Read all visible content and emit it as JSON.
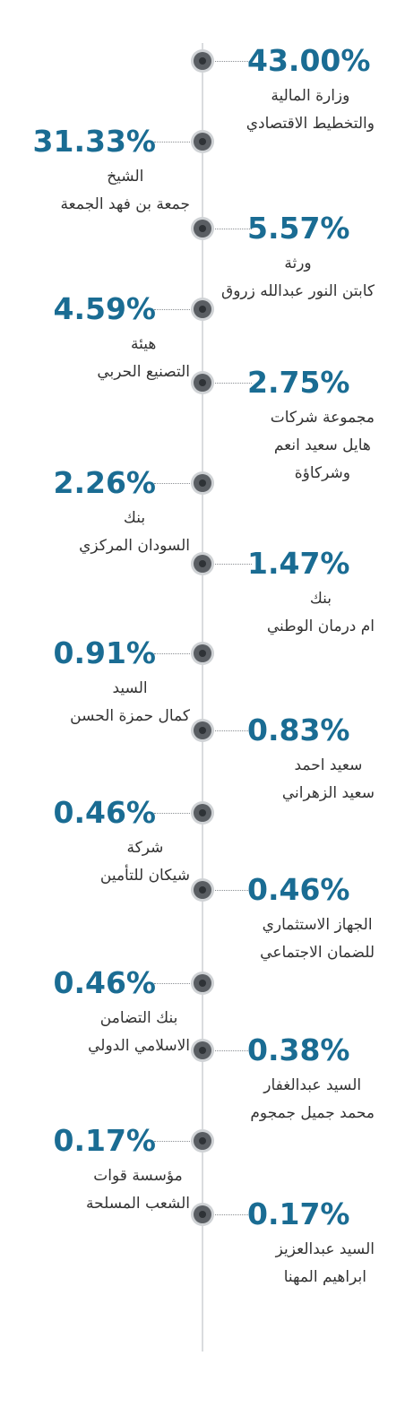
{
  "chart_data": {
    "type": "table",
    "title": "",
    "x": [
      "43.00%",
      "31.33%",
      "5.57%",
      "4.59%",
      "2.75%",
      "2.26%",
      "1.47%",
      "0.91%",
      "0.83%",
      "0.46%",
      "0.46%",
      "0.46%",
      "0.38%",
      "0.17%",
      "0.17%"
    ],
    "items": [
      {
        "pct": "43.00%",
        "value": 43.0,
        "side": "right",
        "lines": [
          "وزارة المالية",
          "والتخطيط الاقتصادي"
        ]
      },
      {
        "pct": "31.33%",
        "value": 31.33,
        "side": "left",
        "lines": [
          "الشيخ",
          "جمعة بن فهد الجمعة"
        ]
      },
      {
        "pct": "5.57%",
        "value": 5.57,
        "side": "right",
        "lines": [
          "ورثة",
          "كابتن النور عبدالله زروق"
        ]
      },
      {
        "pct": "4.59%",
        "value": 4.59,
        "side": "left",
        "lines": [
          "هيئة",
          "التصنيع الحربي"
        ]
      },
      {
        "pct": "2.75%",
        "value": 2.75,
        "side": "right",
        "lines": [
          "مجموعة شركات",
          "هايل سعيد انعم",
          "وشركاؤة"
        ]
      },
      {
        "pct": "2.26%",
        "value": 2.26,
        "side": "left",
        "lines": [
          "بنك",
          "السودان المركزي"
        ]
      },
      {
        "pct": "1.47%",
        "value": 1.47,
        "side": "right",
        "lines": [
          "بنك",
          "ام درمان الوطني"
        ]
      },
      {
        "pct": "0.91%",
        "value": 0.91,
        "side": "left",
        "lines": [
          "السيد",
          "كمال حمزة الحسن"
        ]
      },
      {
        "pct": "0.83%",
        "value": 0.83,
        "side": "right",
        "lines": [
          "سعيد احمد",
          "سعيد الزهراني"
        ]
      },
      {
        "pct": "0.46%",
        "value": 0.46,
        "side": "left",
        "lines": [
          "شركة",
          "شيكان للتأمين"
        ]
      },
      {
        "pct": "0.46%",
        "value": 0.46,
        "side": "right",
        "lines": [
          "الجهاز الاستثماري",
          "للضمان الاجتماعي"
        ]
      },
      {
        "pct": "0.46%",
        "value": 0.46,
        "side": "left",
        "lines": [
          "بنك التضامن",
          "الاسلامي الدولي"
        ]
      },
      {
        "pct": "0.38%",
        "value": 0.38,
        "side": "right",
        "lines": [
          "السيد عبدالغفار",
          "محمد جميل جمجوم"
        ]
      },
      {
        "pct": "0.17%",
        "value": 0.17,
        "side": "left",
        "lines": [
          "مؤسسة قوات",
          "الشعب المسلحة"
        ]
      },
      {
        "pct": "0.17%",
        "value": 0.17,
        "side": "right",
        "lines": [
          "السيد عبدالعزيز",
          "ابراهيم المهنا"
        ]
      }
    ]
  },
  "colors": {
    "percent": "#1a6c93",
    "label": "#333333",
    "dot": "#5a5e63",
    "line": "#b5b9bc"
  }
}
